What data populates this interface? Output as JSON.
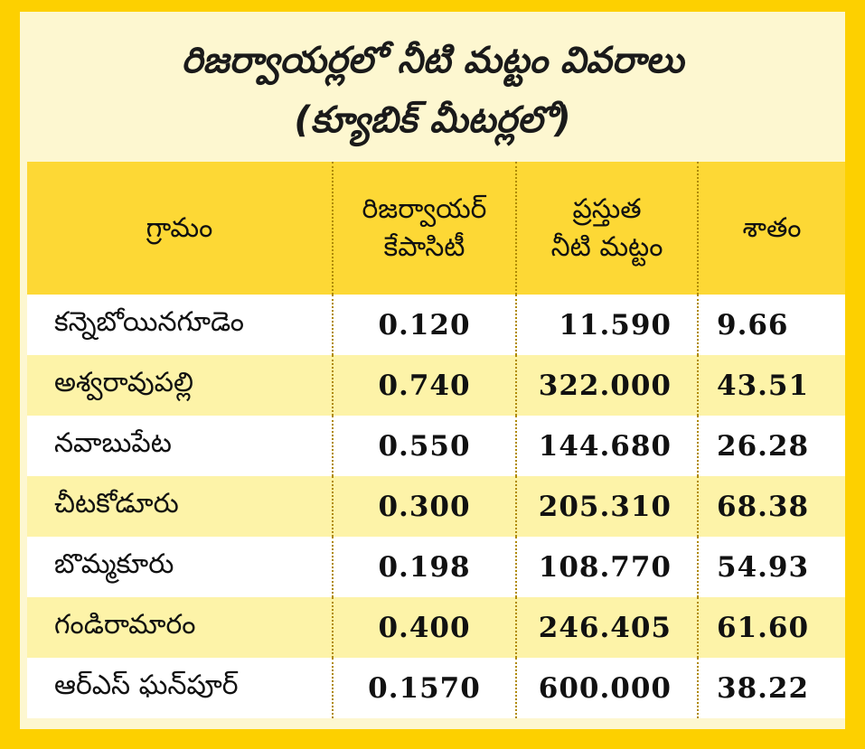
{
  "title": {
    "line1": "రిజర్వాయర్లలో నీటి మట్టం వివరాలు",
    "line2": "(క్యూబిక్ మీటర్లలో)"
  },
  "table": {
    "headers": {
      "village": "గ్రామం",
      "capacity_line1": "రిజర్వాయర్",
      "capacity_line2": "కేపాసిటీ",
      "level_line1": "ప్రస్తుత",
      "level_line2": "నీటి మట్టం",
      "percent": "శాతం"
    },
    "rows": [
      {
        "village": "కన్నెబోయినగూడెం",
        "capacity": "0.120",
        "level": "11.590",
        "percent": "9.66"
      },
      {
        "village": "అశ్వరావుపల్లి",
        "capacity": "0.740",
        "level": "322.000",
        "percent": "43.51"
      },
      {
        "village": "నవాబుపేట",
        "capacity": "0.550",
        "level": "144.680",
        "percent": "26.28"
      },
      {
        "village": "చీటకోడూరు",
        "capacity": "0.300",
        "level": "205.310",
        "percent": "68.38"
      },
      {
        "village": "బొమ్మకూరు",
        "capacity": "0.198",
        "level": "108.770",
        "percent": "54.93"
      },
      {
        "village": "గండిరామారం",
        "capacity": "0.400",
        "level": "246.405",
        "percent": "61.60"
      },
      {
        "village": "ఆర్ఎస్ ఘన్‌పూర్",
        "capacity": "0.1570",
        "level": "600.000",
        "percent": "38.22"
      }
    ]
  },
  "colors": {
    "frame": "#fdd000",
    "title_bg": "#fdf7d0",
    "header_bg": "#fdd835",
    "row_alt": "#fdf3a8",
    "row": "#ffffff"
  }
}
